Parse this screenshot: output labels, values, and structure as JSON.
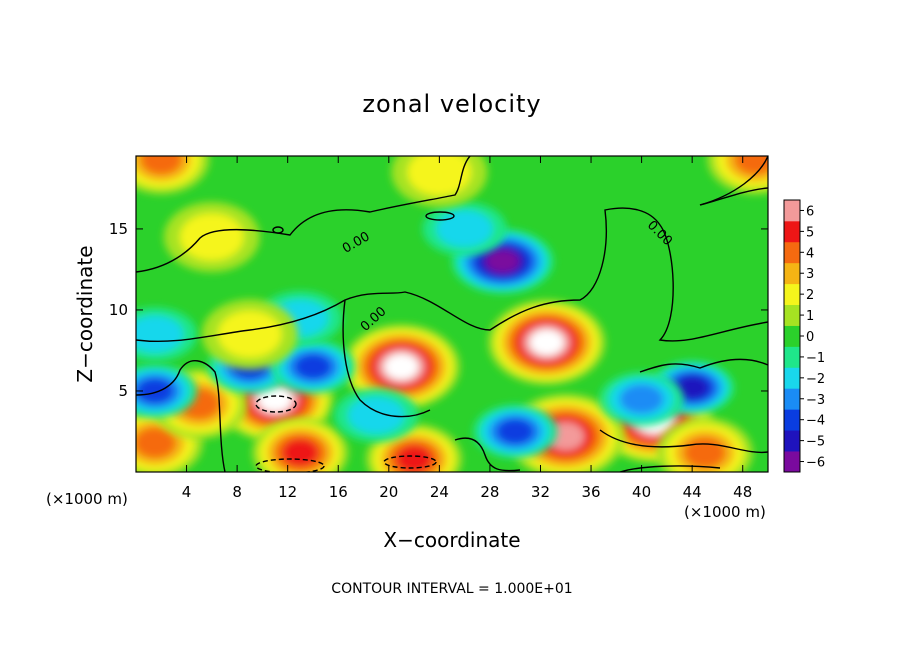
{
  "chart_data": {
    "type": "heatmap",
    "title": "zonal velocity",
    "xlabel": "X−coordinate",
    "ylabel": "Z−coordinate",
    "x_unit_label": "(×1000 m)",
    "xlim": [
      0,
      50
    ],
    "ylim": [
      0,
      19.5
    ],
    "x_ticks": [
      "4",
      "8",
      "12",
      "16",
      "20",
      "24",
      "28",
      "32",
      "36",
      "40",
      "44",
      "48"
    ],
    "y_ticks": [
      "5",
      "10",
      "15"
    ],
    "colorbar": {
      "ticks": [
        "6",
        "5",
        "4",
        "3",
        "2",
        "1",
        "0",
        "−1",
        "−2",
        "−3",
        "−4",
        "−5",
        "−6"
      ],
      "range": [
        -6,
        6
      ],
      "colors": [
        "#7a0a9e",
        "#1f13bd",
        "#0a3de0",
        "#1a8cf5",
        "#19d7ec",
        "#1fe68a",
        "#2bd12b",
        "#a6e322",
        "#f5f51c",
        "#f5b414",
        "#f56a10",
        "#ee1616",
        "#f39a9a"
      ]
    },
    "contour_label": "0.00",
    "footnote": "CONTOUR INTERVAL = 1.000E+01",
    "features": [
      {
        "x": 29,
        "z": 13,
        "value": -6
      },
      {
        "x": 21,
        "z": 6.5,
        "value": 7
      },
      {
        "x": 32.5,
        "z": 8,
        "value": 7
      },
      {
        "x": 11,
        "z": 4.5,
        "value": 7
      },
      {
        "x": 41,
        "z": 3.2,
        "value": 7
      },
      {
        "x": 34,
        "z": 2.2,
        "value": 6
      },
      {
        "x": 2,
        "z": 19.3,
        "value": 4
      },
      {
        "x": 49,
        "z": 19.3,
        "value": 4
      },
      {
        "x": 1.5,
        "z": 1.8,
        "value": 4
      },
      {
        "x": 5,
        "z": 4.2,
        "value": 4
      },
      {
        "x": 13,
        "z": 1.2,
        "value": 5
      },
      {
        "x": 22,
        "z": 0.8,
        "value": 5
      },
      {
        "x": 45,
        "z": 1.2,
        "value": 4
      },
      {
        "x": 9,
        "z": 6.5,
        "value": -4
      },
      {
        "x": 14,
        "z": 6.5,
        "value": -4
      },
      {
        "x": 1.5,
        "z": 5,
        "value": -4
      },
      {
        "x": 44,
        "z": 5.2,
        "value": -5
      },
      {
        "x": 40,
        "z": 4.5,
        "value": -3
      },
      {
        "x": 26,
        "z": 15,
        "value": -2
      },
      {
        "x": 1.5,
        "z": 8.5,
        "value": -2
      },
      {
        "x": 13,
        "z": 9.5,
        "value": -2
      },
      {
        "x": 19,
        "z": 3.5,
        "value": -2
      },
      {
        "x": 30,
        "z": 2.5,
        "value": -4
      },
      {
        "x": 6,
        "z": 14.5,
        "value": 2
      },
      {
        "x": 24,
        "z": 18.5,
        "value": 2
      },
      {
        "x": 9,
        "z": 8.5,
        "value": 2
      }
    ]
  }
}
